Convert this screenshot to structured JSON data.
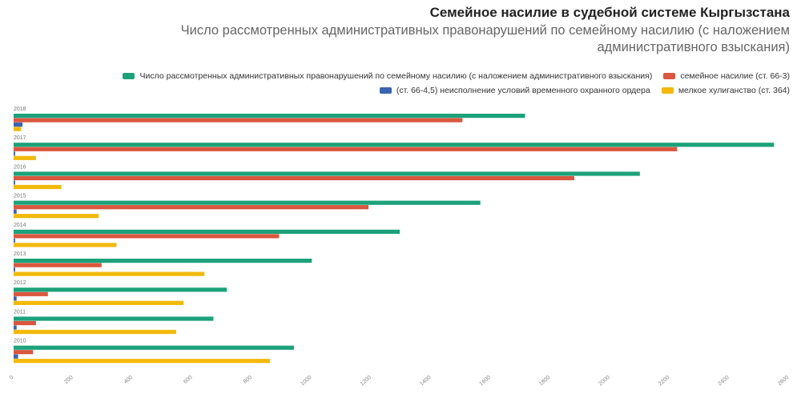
{
  "title": "Семейное насилие в судебной системе Кыргызстана",
  "subtitle": "Число рассмотренных административных правонарушений по семейному насилию (с наложением административного взыскания)",
  "chart_data": {
    "type": "bar",
    "orientation": "horizontal",
    "categories": [
      "2018",
      "2017",
      "2016",
      "2015",
      "2014",
      "2013",
      "2012",
      "2011",
      "2010"
    ],
    "series": [
      {
        "name": "Число рассмотренных административных правонарушений по семейному насилию (с наложением административного взыскания)",
        "color": "#1ca27a",
        "values": [
          1715,
          2550,
          2100,
          1565,
          1295,
          1000,
          715,
          670,
          940
        ]
      },
      {
        "name": "семейное насилие (ст. 66-3)",
        "color": "#d9573e",
        "values": [
          1505,
          2225,
          1880,
          1190,
          890,
          295,
          115,
          75,
          65
        ]
      },
      {
        "name": "(ст. 66-4,5) неисполнение условий временного охранного ордера",
        "color": "#3b64b0",
        "values": [
          30,
          5,
          5,
          10,
          5,
          5,
          10,
          10,
          15
        ]
      },
      {
        "name": "мелкое хулиганство (ст. 364)",
        "color": "#f2b90c",
        "values": [
          25,
          75,
          160,
          285,
          345,
          640,
          570,
          545,
          860
        ]
      }
    ],
    "xlim": [
      0,
      2600
    ],
    "xticks": [
      "0",
      "200",
      "400",
      "600",
      "800",
      "1000",
      "1200",
      "1400",
      "1600",
      "1800",
      "2000",
      "2200",
      "2400",
      "2600"
    ],
    "grid": false,
    "legend": "top-right"
  }
}
